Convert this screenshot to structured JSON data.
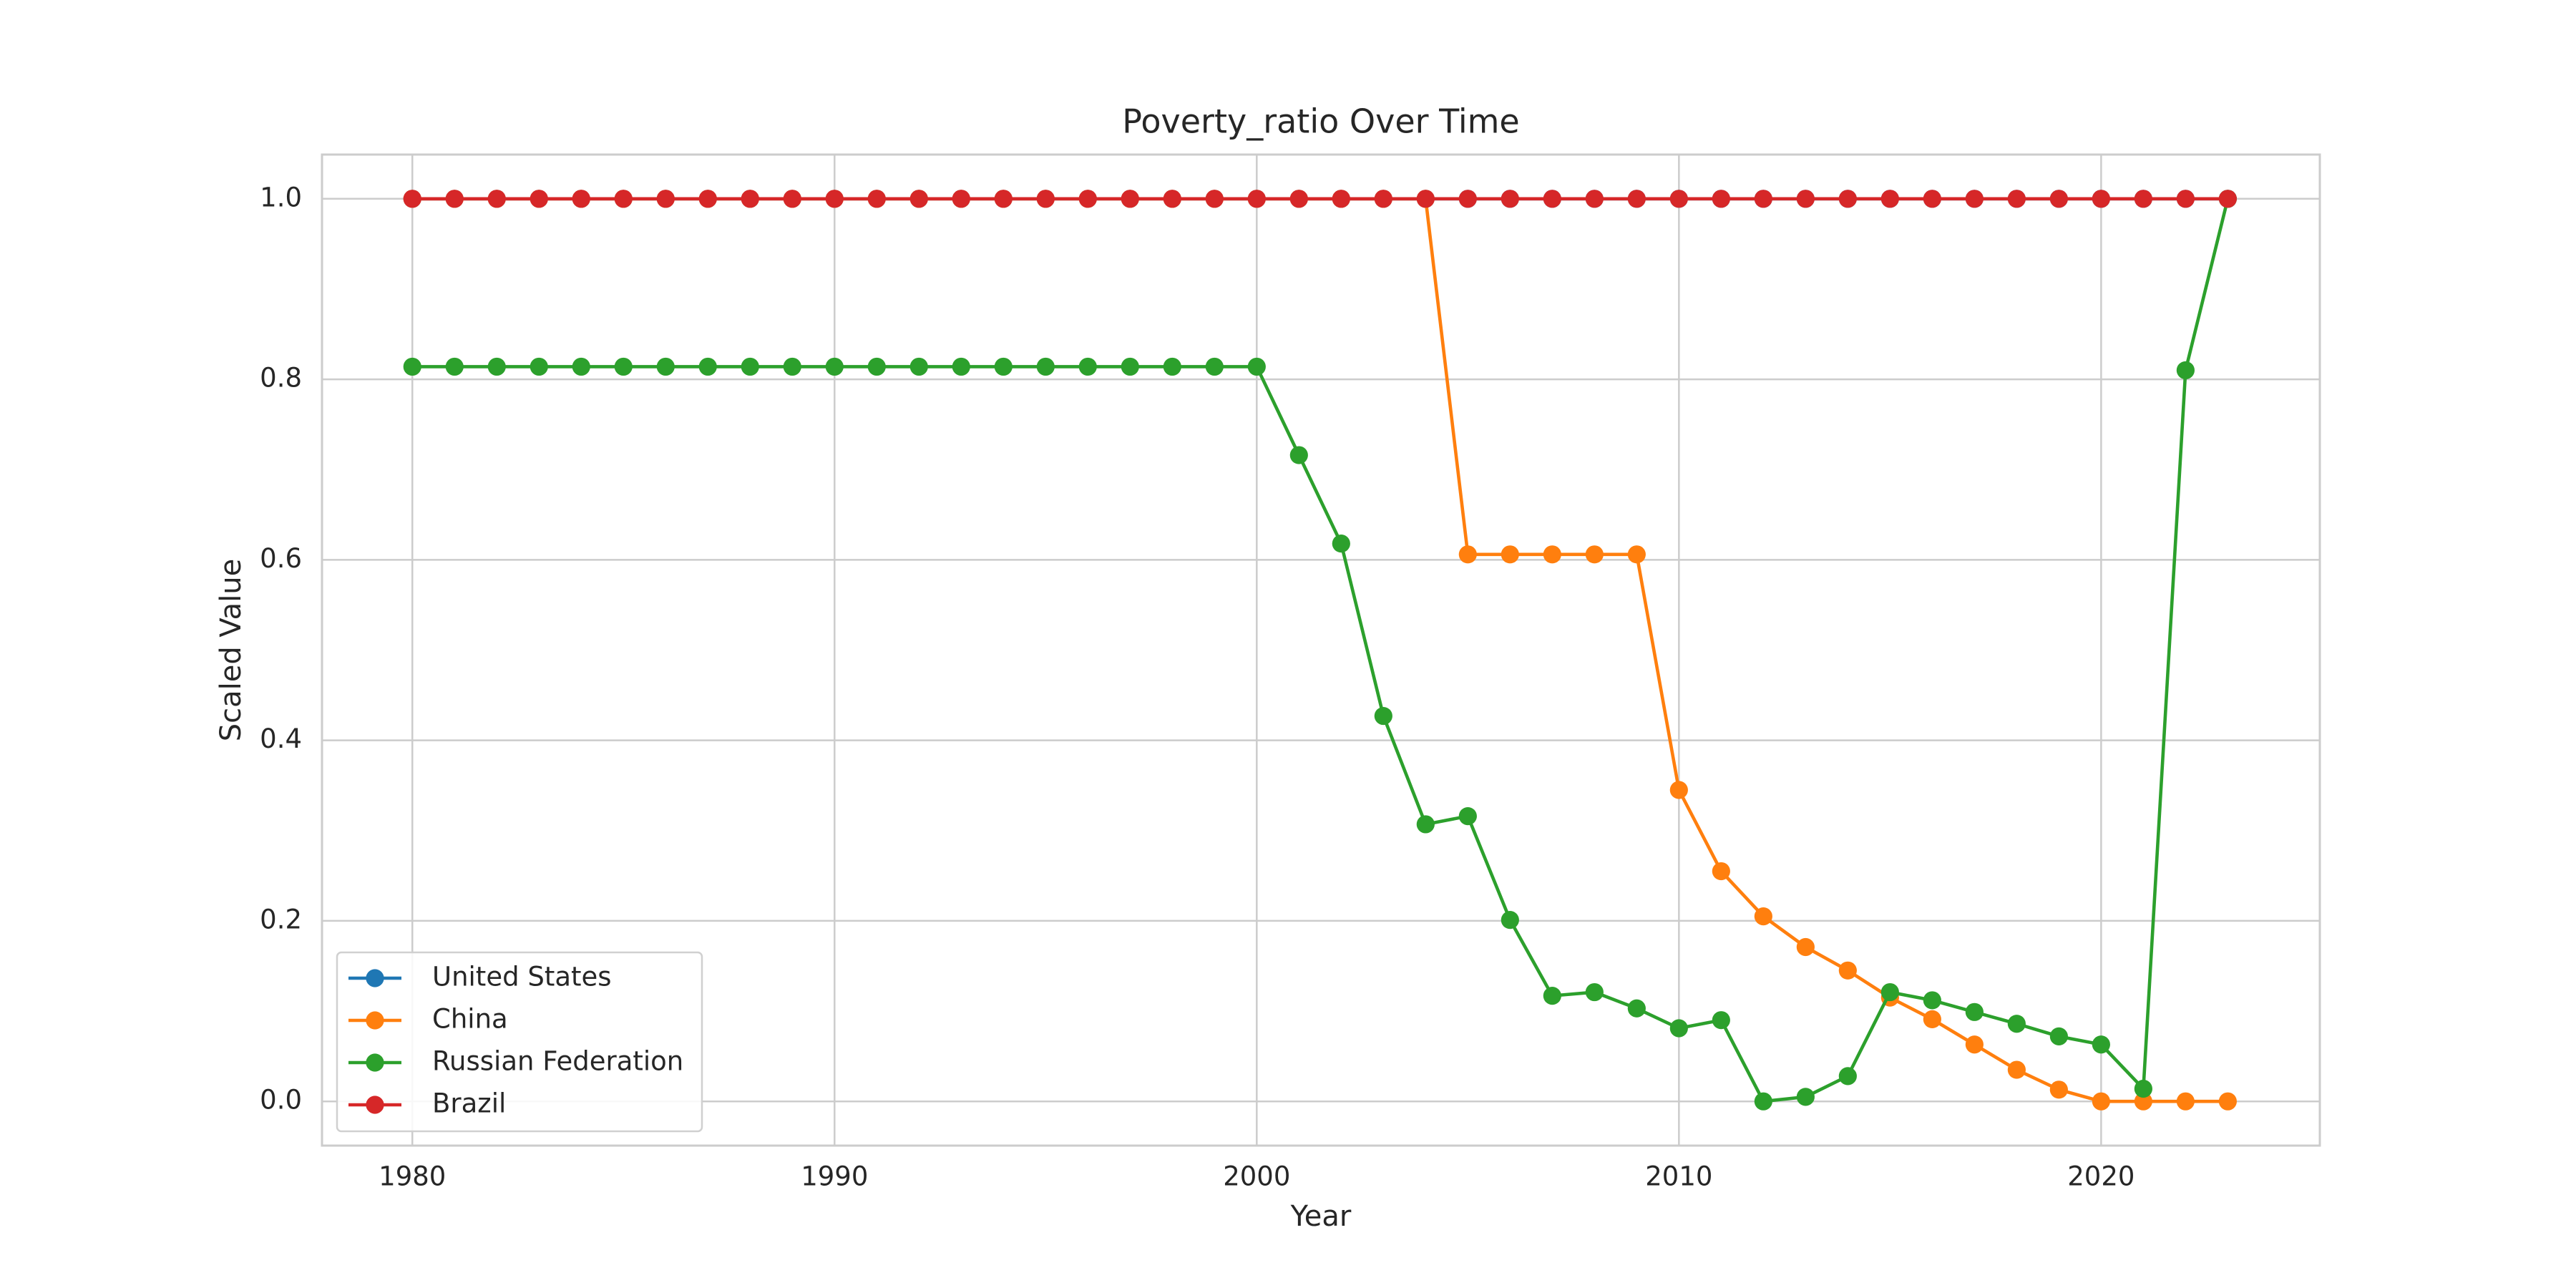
{
  "chart_data": {
    "type": "line",
    "title": "Poverty_ratio Over Time",
    "xlabel": "Year",
    "ylabel": "Scaled Value",
    "x": [
      1980,
      1981,
      1982,
      1983,
      1984,
      1985,
      1986,
      1987,
      1988,
      1989,
      1990,
      1991,
      1992,
      1993,
      1994,
      1995,
      1996,
      1997,
      1998,
      1999,
      2000,
      2001,
      2002,
      2003,
      2004,
      2005,
      2006,
      2007,
      2008,
      2009,
      2010,
      2011,
      2012,
      2013,
      2014,
      2015,
      2016,
      2017,
      2018,
      2019,
      2020,
      2021,
      2022,
      2023
    ],
    "series": [
      {
        "name": "United States",
        "color": "#1f77b4",
        "values": [
          1,
          1,
          1,
          1,
          1,
          1,
          1,
          1,
          1,
          1,
          1,
          1,
          1,
          1,
          1,
          1,
          1,
          1,
          1,
          1,
          1,
          1,
          1,
          1,
          1,
          1,
          1,
          1,
          1,
          1,
          1,
          1,
          1,
          1,
          1,
          1,
          1,
          1,
          1,
          1,
          1,
          1,
          1,
          1
        ]
      },
      {
        "name": "China",
        "color": "#ff7f0e",
        "values": [
          1,
          1,
          1,
          1,
          1,
          1,
          1,
          1,
          1,
          1,
          1,
          1,
          1,
          1,
          1,
          1,
          1,
          1,
          1,
          1,
          1,
          1,
          1,
          1,
          1,
          0.606,
          0.606,
          0.606,
          0.606,
          0.606,
          0.345,
          0.255,
          0.205,
          0.171,
          0.145,
          0.115,
          0.091,
          0.063,
          0.035,
          0.013,
          0,
          0,
          0,
          0
        ]
      },
      {
        "name": "Russian Federation",
        "color": "#2ca02c",
        "values": [
          0.814,
          0.814,
          0.814,
          0.814,
          0.814,
          0.814,
          0.814,
          0.814,
          0.814,
          0.814,
          0.814,
          0.814,
          0.814,
          0.814,
          0.814,
          0.814,
          0.814,
          0.814,
          0.814,
          0.814,
          0.814,
          0.716,
          0.618,
          0.427,
          0.307,
          0.316,
          0.201,
          0.117,
          0.121,
          0.103,
          0.081,
          0.09,
          0,
          0.005,
          0.028,
          0.121,
          0.112,
          0.099,
          0.086,
          0.072,
          0.063,
          0.014,
          0.81,
          1
        ]
      },
      {
        "name": "Brazil",
        "color": "#d62728",
        "values": [
          1,
          1,
          1,
          1,
          1,
          1,
          1,
          1,
          1,
          1,
          1,
          1,
          1,
          1,
          1,
          1,
          1,
          1,
          1,
          1,
          1,
          1,
          1,
          1,
          1,
          1,
          1,
          1,
          1,
          1,
          1,
          1,
          1,
          1,
          1,
          1,
          1,
          1,
          1,
          1,
          1,
          1,
          1,
          1
        ]
      }
    ],
    "xlim": [
      1977.86,
      2025.18
    ],
    "xticks": [
      1980,
      1990,
      2000,
      2010,
      2020
    ],
    "ylim": [
      -0.049,
      1.049
    ],
    "yticks": [
      {
        "value": 0,
        "label": "0.0"
      },
      {
        "value": 0.2,
        "label": "0.2"
      },
      {
        "value": 0.4,
        "label": "0.4"
      },
      {
        "value": 0.6,
        "label": "0.6"
      },
      {
        "value": 0.8,
        "label": "0.8"
      },
      {
        "value": 1,
        "label": "1.0"
      }
    ],
    "grid": true,
    "legend": "lower left"
  }
}
